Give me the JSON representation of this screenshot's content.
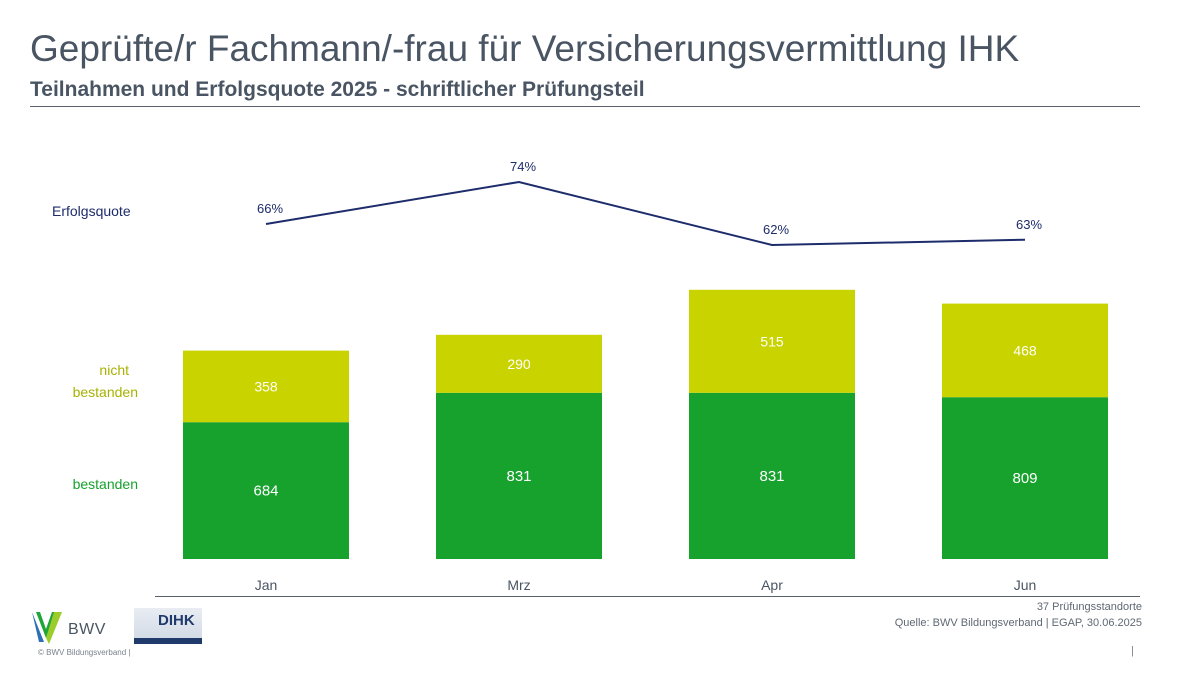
{
  "header": {
    "title": "Geprüfte/r Fachmann/-frau für Versicherungsvermittlung IHK",
    "subtitle": "Teilnahmen und Erfolgsquote 2025 - schriftlicher Prüfungsteil"
  },
  "chart_data": {
    "type": "bar",
    "stacked": true,
    "categories": [
      "Jan",
      "Mrz",
      "Apr",
      "Jun"
    ],
    "series": [
      {
        "name": "bestanden",
        "values": [
          684,
          831,
          831,
          809
        ],
        "color": "#17a12d"
      },
      {
        "name": "nicht bestanden",
        "values": [
          358,
          290,
          515,
          468
        ],
        "color": "#c8d300"
      }
    ],
    "line": {
      "name": "Erfolgsquote",
      "values": [
        66,
        74,
        62,
        63
      ],
      "labels": [
        "66%",
        "74%",
        "62%",
        "63%"
      ],
      "color": "#1d2c6b"
    },
    "legend": {
      "line_label": "Erfolgsquote",
      "failed_label_line1": "nicht",
      "failed_label_line2": "bestanden",
      "passed_label": "bestanden"
    },
    "grid": false,
    "legend_placement": "left"
  },
  "footer": {
    "locations": "37 Prüfungsstandorte",
    "source": "Quelle: BWV Bildungsverband | EGAP, 30.06.2025",
    "copyright": "©  BWV Bildungsverband  |",
    "pipe": "|",
    "bwv_logo_text": "BWV",
    "dihk_logo_text": "DIHK"
  }
}
